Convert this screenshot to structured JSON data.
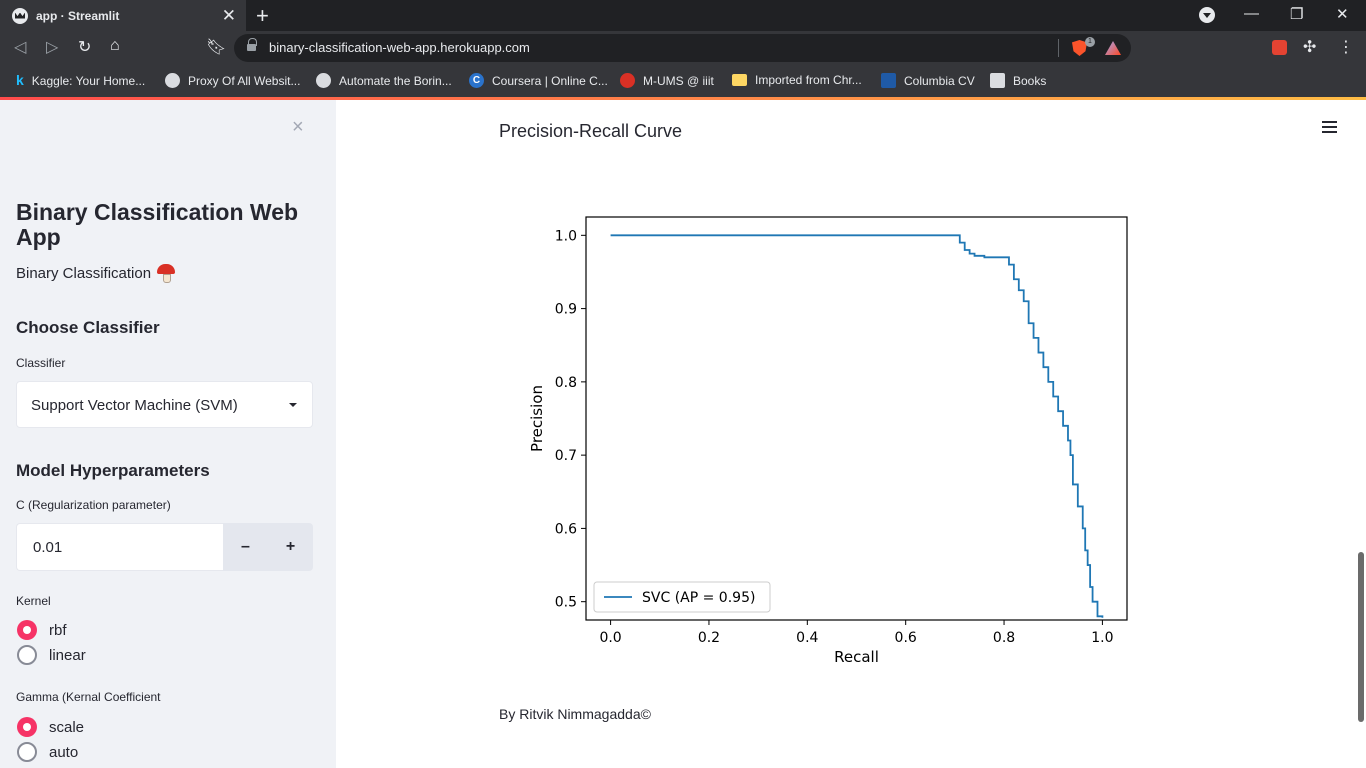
{
  "browser": {
    "tab_title": "app · Streamlit",
    "url": "binary-classification-web-app.herokuapp.com",
    "brave_badge_count": "1",
    "bookmarks": [
      {
        "label": "Kaggle: Your Home...",
        "icon": "kaggle-icon"
      },
      {
        "label": "Proxy Of All Websit...",
        "icon": "globe-icon"
      },
      {
        "label": "Automate the Borin...",
        "icon": "globe-icon"
      },
      {
        "label": "Coursera | Online C...",
        "icon": "coursera-icon"
      },
      {
        "label": "M-UMS @ iiit",
        "icon": "mums-icon"
      },
      {
        "label": "Imported from Chr...",
        "icon": "folder-icon"
      },
      {
        "label": "Columbia CV",
        "icon": "columbia-icon"
      },
      {
        "label": "Books",
        "icon": "books-icon"
      }
    ]
  },
  "sidebar": {
    "close_glyph": "×",
    "title": "Binary Classification Web App",
    "subtitle": "Binary Classification",
    "subtitle_icon": "mushroom-icon",
    "choose_heading": "Choose Classifier",
    "classifier_label": "Classifier",
    "classifier_value": "Support Vector Machine (SVM)",
    "hyper_heading": "Model Hyperparameters",
    "c_label": "C (Regularization parameter)",
    "c_value": "0.01",
    "minus": "–",
    "plus": "+",
    "kernel_label": "Kernel",
    "kernel_options": [
      "rbf",
      "linear"
    ],
    "kernel_selected": "rbf",
    "gamma_label": "Gamma (Kernal Coefficient",
    "gamma_options": [
      "scale",
      "auto"
    ],
    "gamma_selected": "scale"
  },
  "main": {
    "section_title": "Precision-Recall Curve",
    "footer": "By Ritvik Nimmagadda©"
  },
  "colors": {
    "accent": "#f63366",
    "series": "#1f77b4",
    "sidebar_bg": "#f0f2f6"
  },
  "chart_data": {
    "type": "line",
    "title": "",
    "xlabel": "Recall",
    "ylabel": "Precision",
    "xlim": [
      -0.05,
      1.05
    ],
    "ylim": [
      0.475,
      1.025
    ],
    "xticks": [
      "0.0",
      "0.2",
      "0.4",
      "0.6",
      "0.8",
      "1.0"
    ],
    "yticks": [
      "0.5",
      "0.6",
      "0.7",
      "0.8",
      "0.9",
      "1.0"
    ],
    "legend": "lower-left",
    "series": [
      {
        "name": "SVC (AP = 0.95)",
        "x": [
          0.0,
          0.7,
          0.71,
          0.72,
          0.73,
          0.74,
          0.76,
          0.8,
          0.81,
          0.82,
          0.83,
          0.84,
          0.85,
          0.86,
          0.87,
          0.88,
          0.89,
          0.9,
          0.91,
          0.92,
          0.93,
          0.935,
          0.94,
          0.95,
          0.96,
          0.965,
          0.97,
          0.975,
          0.98,
          0.99,
          1.0
        ],
        "y": [
          1.0,
          1.0,
          0.99,
          0.98,
          0.975,
          0.972,
          0.97,
          0.97,
          0.96,
          0.94,
          0.925,
          0.91,
          0.88,
          0.86,
          0.84,
          0.82,
          0.8,
          0.78,
          0.76,
          0.74,
          0.72,
          0.7,
          0.66,
          0.63,
          0.6,
          0.57,
          0.55,
          0.52,
          0.5,
          0.48,
          0.478
        ]
      }
    ]
  }
}
